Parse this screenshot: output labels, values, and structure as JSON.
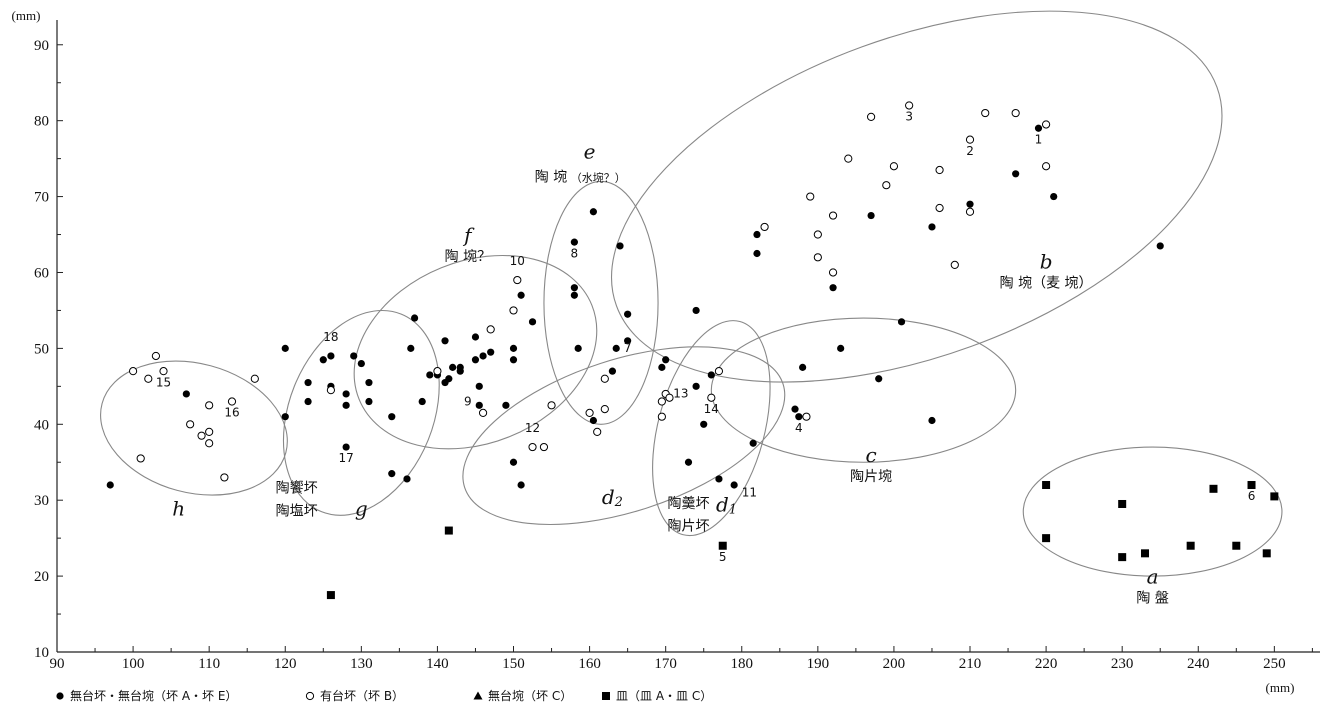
{
  "chart_data": {
    "type": "scatter",
    "x_unit": "(mm)",
    "y_unit": "(mm)",
    "xlim": [
      90,
      256
    ],
    "ylim": [
      10,
      93
    ],
    "x_ticks": [
      90,
      100,
      110,
      120,
      130,
      140,
      150,
      160,
      170,
      180,
      190,
      200,
      210,
      220,
      230,
      240,
      250
    ],
    "y_ticks": [
      10,
      20,
      30,
      40,
      50,
      60,
      70,
      80,
      90
    ],
    "legend": [
      {
        "marker": "filled-circle",
        "label": "無台坏・無台埦（坏 A・坏 E）"
      },
      {
        "marker": "open-circle",
        "label": "有台坏（坏 B）"
      },
      {
        "marker": "triangle",
        "label": "無台埦（坏 C）"
      },
      {
        "marker": "square",
        "label": "皿（皿 A・皿 C）"
      }
    ],
    "series": [
      {
        "marker": "filled-circle",
        "points": [
          [
            97,
            32
          ],
          [
            107,
            44
          ],
          [
            120,
            50
          ],
          [
            120,
            41
          ],
          [
            123,
            45.5
          ],
          [
            123,
            43
          ],
          [
            125,
            48.5
          ],
          [
            126,
            49
          ],
          [
            126,
            45
          ],
          [
            128,
            44
          ],
          [
            128,
            42.5
          ],
          [
            128,
            37
          ],
          [
            129,
            49
          ],
          [
            130,
            48
          ],
          [
            131,
            45.5
          ],
          [
            131,
            43
          ],
          [
            134,
            41
          ],
          [
            134,
            33.5
          ],
          [
            136,
            32.8
          ],
          [
            137,
            54
          ],
          [
            136.5,
            50
          ],
          [
            138,
            43
          ],
          [
            139,
            46.5
          ],
          [
            140,
            46.5
          ],
          [
            141,
            45.5
          ],
          [
            141,
            51
          ],
          [
            141.5,
            46
          ],
          [
            142,
            47.5
          ],
          [
            143,
            47
          ],
          [
            143,
            47.5
          ],
          [
            145,
            48.5
          ],
          [
            145,
            51.5
          ],
          [
            145.5,
            45
          ],
          [
            145.5,
            42.5
          ],
          [
            146,
            49
          ],
          [
            147,
            49.5
          ],
          [
            149,
            42.5
          ],
          [
            150,
            50
          ],
          [
            150,
            48.5
          ],
          [
            151,
            57
          ],
          [
            152.5,
            53.5
          ],
          [
            150,
            35
          ],
          [
            151,
            32
          ],
          [
            158,
            64
          ],
          [
            158,
            58
          ],
          [
            158,
            57
          ],
          [
            158.5,
            50
          ],
          [
            160.5,
            68
          ],
          [
            160.5,
            40.5
          ],
          [
            163,
            47
          ],
          [
            163.5,
            50
          ],
          [
            164,
            63.5
          ],
          [
            165,
            54.5
          ],
          [
            165,
            51
          ],
          [
            169.5,
            47.5
          ],
          [
            170,
            48.5
          ],
          [
            173,
            35
          ],
          [
            174,
            55
          ],
          [
            174,
            45
          ],
          [
            175,
            40
          ],
          [
            176,
            46.5
          ],
          [
            177,
            32.8
          ],
          [
            179,
            32
          ],
          [
            181.5,
            37.5
          ],
          [
            187,
            42
          ],
          [
            188,
            47.5
          ],
          [
            187.5,
            41
          ],
          [
            193,
            50
          ],
          [
            198,
            46
          ],
          [
            201,
            53.5
          ],
          [
            205,
            40.5
          ],
          [
            182,
            62.5
          ],
          [
            182,
            65
          ],
          [
            192,
            58
          ],
          [
            197,
            67.5
          ],
          [
            205,
            66
          ],
          [
            210,
            69
          ],
          [
            216,
            73
          ],
          [
            219,
            79
          ],
          [
            221,
            70
          ],
          [
            235,
            63.5
          ]
        ]
      },
      {
        "marker": "open-circle",
        "points": [
          [
            100,
            47
          ],
          [
            101,
            35.5
          ],
          [
            102,
            46
          ],
          [
            103,
            49
          ],
          [
            104,
            47
          ],
          [
            107.5,
            40
          ],
          [
            109,
            38.5
          ],
          [
            110,
            42.5
          ],
          [
            110,
            39
          ],
          [
            110,
            37.5
          ],
          [
            112,
            33
          ],
          [
            113,
            43
          ],
          [
            116,
            46
          ],
          [
            126,
            44.5
          ],
          [
            140,
            47
          ],
          [
            146,
            41.5
          ],
          [
            147,
            52.5
          ],
          [
            150,
            55
          ],
          [
            150.5,
            59
          ],
          [
            155,
            42.5
          ],
          [
            152.5,
            37
          ],
          [
            154,
            37
          ],
          [
            160,
            41.5
          ],
          [
            161,
            39
          ],
          [
            162,
            46
          ],
          [
            162,
            42
          ],
          [
            169.5,
            41
          ],
          [
            169.5,
            43
          ],
          [
            170,
            44
          ],
          [
            170.5,
            43.5
          ],
          [
            176,
            43.5
          ],
          [
            177,
            47
          ],
          [
            183,
            66
          ],
          [
            188.5,
            41
          ],
          [
            189,
            70
          ],
          [
            190,
            65
          ],
          [
            190,
            62
          ],
          [
            192,
            67.5
          ],
          [
            192,
            60
          ],
          [
            194,
            75
          ],
          [
            197,
            80.5
          ],
          [
            199,
            71.5
          ],
          [
            200,
            74
          ],
          [
            202,
            82
          ],
          [
            206,
            73.5
          ],
          [
            206,
            68.5
          ],
          [
            208,
            61
          ],
          [
            210,
            77.5
          ],
          [
            210,
            68
          ],
          [
            212,
            81
          ],
          [
            216,
            81
          ],
          [
            220,
            79.5
          ],
          [
            220,
            74
          ]
        ]
      },
      {
        "marker": "square",
        "points": [
          [
            126,
            17.5
          ],
          [
            141.5,
            26
          ],
          [
            177.5,
            24
          ],
          [
            220,
            32
          ],
          [
            220,
            25
          ],
          [
            230,
            29.5
          ],
          [
            230,
            22.5
          ],
          [
            233,
            23
          ],
          [
            239,
            24
          ],
          [
            242,
            31.5
          ],
          [
            245,
            24
          ],
          [
            247,
            32
          ],
          [
            249,
            23
          ],
          [
            250,
            30.5
          ]
        ]
      }
    ],
    "point_labels": [
      {
        "text": "1",
        "x": 219,
        "y": 77
      },
      {
        "text": "2",
        "x": 210,
        "y": 75.5
      },
      {
        "text": "3",
        "x": 202,
        "y": 80
      },
      {
        "text": "4",
        "x": 187.5,
        "y": 39
      },
      {
        "text": "5",
        "x": 177.5,
        "y": 22
      },
      {
        "text": "6",
        "x": 247,
        "y": 30
      },
      {
        "text": "7",
        "x": 165,
        "y": 49.5
      },
      {
        "text": "8",
        "x": 158,
        "y": 62
      },
      {
        "text": "9",
        "x": 144,
        "y": 42.5
      },
      {
        "text": "10",
        "x": 150.5,
        "y": 61
      },
      {
        "text": "11",
        "x": 181,
        "y": 30.5
      },
      {
        "text": "12",
        "x": 152.5,
        "y": 39
      },
      {
        "text": "13",
        "x": 172,
        "y": 43.5
      },
      {
        "text": "14",
        "x": 176,
        "y": 41.5
      },
      {
        "text": "15",
        "x": 104,
        "y": 45
      },
      {
        "text": "16",
        "x": 113,
        "y": 41
      },
      {
        "text": "17",
        "x": 128,
        "y": 35
      },
      {
        "text": "18",
        "x": 126,
        "y": 51
      }
    ],
    "groups": [
      {
        "id": "a",
        "letter": "a",
        "caption": "陶 盤",
        "ellipse": {
          "cx": 234,
          "cy": 28.5,
          "rx": 17,
          "ry": 8.5,
          "angle": 0
        },
        "letter_pos": [
          234,
          19
        ],
        "caption_pos": [
          234,
          16.5
        ]
      },
      {
        "id": "b",
        "letter": "b",
        "caption": "陶 埦（麦 埦）",
        "ellipse": {
          "cx": 203,
          "cy": 70,
          "rx": 42,
          "ry": 21,
          "angle": 20
        },
        "letter_pos": [
          220,
          60.5
        ],
        "caption_pos": [
          220,
          58
        ]
      },
      {
        "id": "c",
        "letter": "c",
        "caption": "陶片埦",
        "ellipse": {
          "cx": 196,
          "cy": 44.5,
          "rx": 20,
          "ry": 9.5,
          "angle": 0
        },
        "letter_pos": [
          197,
          35
        ],
        "caption_pos": [
          197,
          32.5
        ]
      },
      {
        "id": "d1",
        "letter": "d",
        "sub": "1",
        "caption": "",
        "ellipse": {
          "cx": 176,
          "cy": 39.5,
          "rx": 14.5,
          "ry": 7,
          "angle": 75
        },
        "letter_pos": [
          178,
          28.5
        ],
        "caption_pos": null
      },
      {
        "id": "d2",
        "letter": "d",
        "sub": "2",
        "caption": "",
        "ellipse": {
          "cx": 164.5,
          "cy": 38.5,
          "rx": 22,
          "ry": 10,
          "angle": 18
        },
        "letter_pos": [
          163,
          29.5
        ],
        "caption_pos": null
      },
      {
        "id": "d-caption",
        "letter": "",
        "caption": "陶羹坏",
        "caption2": "陶片坏",
        "ellipse": null,
        "letter_pos": null,
        "caption_pos": [
          173,
          29
        ],
        "caption2_pos": [
          173,
          26
        ]
      },
      {
        "id": "e",
        "letter": "e",
        "caption": "陶 埦",
        "caption_small": "（水埦？）",
        "ellipse": {
          "cx": 161.5,
          "cy": 56,
          "rx": 7.5,
          "ry": 16,
          "angle": 0
        },
        "letter_pos": [
          160,
          75
        ],
        "caption_pos": [
          157,
          72
        ]
      },
      {
        "id": "f",
        "letter": "f",
        "caption": "陶 埦？",
        "ellipse": {
          "cx": 145,
          "cy": 49.5,
          "rx": 16.5,
          "ry": 12,
          "angle": 22
        },
        "letter_pos": [
          144,
          64
        ],
        "caption_pos": [
          144,
          61.5
        ]
      },
      {
        "id": "g",
        "letter": "g",
        "caption": "",
        "ellipse": {
          "cx": 130,
          "cy": 41.5,
          "rx": 14,
          "ry": 9.5,
          "angle": 68
        },
        "letter_pos": [
          130,
          28
        ],
        "caption_pos": null
      },
      {
        "id": "gh-caption",
        "letter": "",
        "caption": "陶饗坏",
        "caption2": "陶塩坏",
        "ellipse": null,
        "letter_pos": null,
        "caption_pos": [
          121.5,
          31
        ],
        "caption2_pos": [
          121.5,
          28
        ]
      },
      {
        "id": "h",
        "letter": "h",
        "caption": "",
        "ellipse": {
          "cx": 108,
          "cy": 39.5,
          "rx": 12.5,
          "ry": 8.5,
          "angle": -15
        },
        "letter_pos": [
          106,
          28
        ],
        "caption_pos": null
      }
    ]
  }
}
